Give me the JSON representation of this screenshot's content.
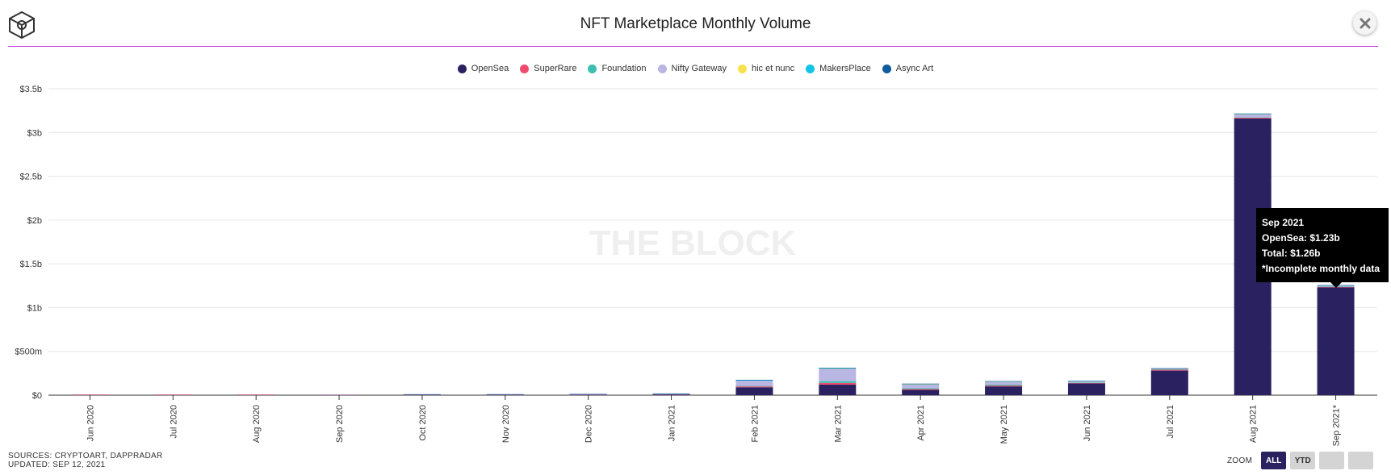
{
  "header": {
    "title": "NFT Marketplace Monthly Volume"
  },
  "watermark": "THE BLOCK",
  "footer": {
    "sources": "SOURCES: CRYPTOART, DAPPRADAR",
    "updated": "UPDATED: SEP 12, 2021"
  },
  "zoom": {
    "label": "ZOOM",
    "buttons": [
      "ALL",
      "YTD",
      "",
      ""
    ],
    "active": "ALL"
  },
  "tooltip": {
    "line1": "Sep 2021",
    "line2": "OpenSea: $1.23b",
    "line3": "Total: $1.26b",
    "line4": "*Incomplete monthly data"
  },
  "colors": {
    "accent_rule": "#c03ad6",
    "gridline": "#e6e6e6",
    "axis": "#333333"
  },
  "chart_data": {
    "type": "bar",
    "stacked": true,
    "title": "NFT Marketplace Monthly Volume",
    "categories": [
      "Jun 2020",
      "Jul 2020",
      "Aug 2020",
      "Sep 2020",
      "Oct 2020",
      "Nov 2020",
      "Dec 2020",
      "Jan 2021",
      "Feb 2021",
      "Mar 2021",
      "Apr 2021",
      "May 2021",
      "Jun 2021",
      "Jul 2021",
      "Aug 2021",
      "Sep 2021*"
    ],
    "yticks": [
      "$0",
      "$500m",
      "$1b",
      "$1.5b",
      "$2b",
      "$2.5b",
      "$3b",
      "$3.5b"
    ],
    "ylim": [
      0,
      3.5
    ],
    "yunit": "billions USD",
    "grid": true,
    "legend_position": "top",
    "series": [
      {
        "name": "OpenSea",
        "color": "#2a2160",
        "values": [
          0.001,
          0.001,
          0.001,
          0.002,
          0.003,
          0.003,
          0.004,
          0.008,
          0.09,
          0.12,
          0.06,
          0.1,
          0.135,
          0.28,
          3.16,
          1.23
        ]
      },
      {
        "name": "SuperRare",
        "color": "#ef4b6d",
        "values": [
          0.0005,
          0.0005,
          0.0007,
          0.001,
          0.001,
          0.0015,
          0.002,
          0.002,
          0.01,
          0.02,
          0.01,
          0.01,
          0.005,
          0.01,
          0.01,
          0.004
        ]
      },
      {
        "name": "Foundation",
        "color": "#3cbfb0",
        "values": [
          0,
          0,
          0,
          0,
          0,
          0,
          0,
          0,
          0.005,
          0.02,
          0.01,
          0.01,
          0.005,
          0.004,
          0.005,
          0.004
        ]
      },
      {
        "name": "Nifty Gateway",
        "color": "#b9b6e3",
        "values": [
          0,
          0,
          0,
          0.0005,
          0.001,
          0.001,
          0.002,
          0.003,
          0.06,
          0.14,
          0.04,
          0.03,
          0.01,
          0.005,
          0.03,
          0.01
        ]
      },
      {
        "name": "hic et nunc",
        "color": "#f9e14d",
        "values": [
          0,
          0,
          0,
          0,
          0,
          0,
          0,
          0,
          0,
          0.002,
          0.003,
          0.003,
          0.002,
          0.002,
          0.003,
          0.002
        ]
      },
      {
        "name": "MakersPlace",
        "color": "#12c5e6",
        "values": [
          0,
          0,
          0,
          0,
          0,
          0,
          0,
          0.001,
          0.005,
          0.006,
          0.003,
          0.002,
          0.002,
          0.002,
          0.003,
          0.002
        ]
      },
      {
        "name": "Async Art",
        "color": "#0e5b9e",
        "values": [
          0,
          0,
          0,
          0,
          0.0005,
          0.0005,
          0.0005,
          0.001,
          0.002,
          0.002,
          0.001,
          0.001,
          0.001,
          0.001,
          0.001,
          0.001
        ]
      }
    ]
  }
}
